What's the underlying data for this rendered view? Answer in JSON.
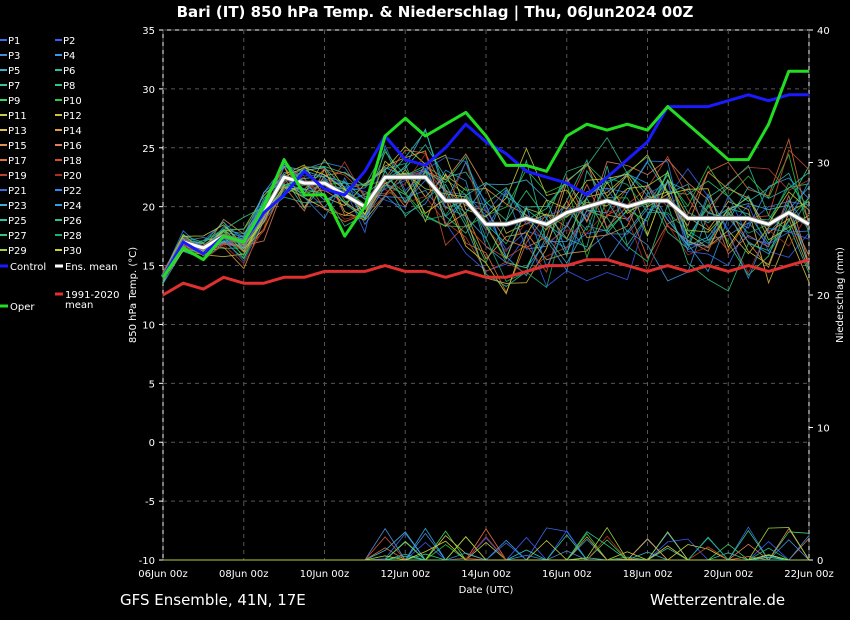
{
  "chart_data": {
    "type": "line",
    "title": "Bari  (IT)  850 hPa Temp. & Niederschlag | Thu, 06Jun2024 00Z",
    "ylabel": "850 hPa Temp. (°C)",
    "y2label": "Niederschlag (mm)",
    "xlabel": "Date (UTC)",
    "footer_left": "GFS Ensemble, 41N, 17E",
    "footer_right": "Wetterzentrale.de",
    "ylim": [
      -10,
      35
    ],
    "y2lim": [
      0,
      40
    ],
    "yticks": [
      "35",
      "30",
      "25",
      "20",
      "15",
      "10",
      "5",
      "0",
      "-5",
      "-10"
    ],
    "y2ticks": [
      "40",
      "30",
      "20",
      "10",
      "0"
    ],
    "xlim": [
      0,
      16
    ],
    "xtick_labels": [
      "06Jun 00z",
      "08Jun 00z",
      "10Jun 00z",
      "12Jun 00z",
      "14Jun 00z",
      "16Jun 00z",
      "18Jun 00z",
      "20Jun 00z",
      "22Jun 00z"
    ],
    "grid": true,
    "legend_position": "left-outside",
    "legend_entries": [
      {
        "name": "P1",
        "color": "#3a6cf0"
      },
      {
        "name": "P2",
        "color": "#3a5cf8"
      },
      {
        "name": "P3",
        "color": "#4a8ad8"
      },
      {
        "name": "P4",
        "color": "#3a9ae8"
      },
      {
        "name": "P5",
        "color": "#3ab0c8"
      },
      {
        "name": "P6",
        "color": "#2ac0a8"
      },
      {
        "name": "P7",
        "color": "#30c8a0"
      },
      {
        "name": "P8",
        "color": "#30c880"
      },
      {
        "name": "P9",
        "color": "#40d060"
      },
      {
        "name": "P10",
        "color": "#30c840"
      },
      {
        "name": "P11",
        "color": "#c8d040"
      },
      {
        "name": "P12",
        "color": "#d0c040"
      },
      {
        "name": "P13",
        "color": "#e0c040"
      },
      {
        "name": "P14",
        "color": "#e0a040"
      },
      {
        "name": "P15",
        "color": "#e09050"
      },
      {
        "name": "P16",
        "color": "#e08060"
      },
      {
        "name": "P17",
        "color": "#e07040"
      },
      {
        "name": "P18",
        "color": "#d05030"
      },
      {
        "name": "P19",
        "color": "#c04030"
      },
      {
        "name": "P20",
        "color": "#b03020"
      },
      {
        "name": "P21",
        "color": "#3a6ce0"
      },
      {
        "name": "P22",
        "color": "#2a8cf0"
      },
      {
        "name": "P23",
        "color": "#40b0d0"
      },
      {
        "name": "P24",
        "color": "#30a0e0"
      },
      {
        "name": "P25",
        "color": "#30c0b0"
      },
      {
        "name": "P26",
        "color": "#30c090"
      },
      {
        "name": "P27",
        "color": "#30c880"
      },
      {
        "name": "P28",
        "color": "#20b070"
      },
      {
        "name": "P29",
        "color": "#a0d040"
      },
      {
        "name": "P30",
        "color": "#d0d030"
      },
      {
        "name": "Control",
        "color": "#1a1aff"
      },
      {
        "name": "Ens. mean",
        "color": "#ffffff"
      },
      {
        "name": "1991-2020 mean",
        "color": "#e03030"
      },
      {
        "name": "Oper",
        "color": "#22dd22"
      }
    ],
    "series": [
      {
        "name": "Oper",
        "color": "#22dd22",
        "x": [
          0,
          0.5,
          1,
          1.5,
          2,
          2.5,
          3,
          3.5,
          4,
          4.5,
          5,
          5.5,
          6,
          6.5,
          7,
          7.5,
          8,
          8.5,
          9,
          9.5,
          10,
          10.5,
          11,
          11.5,
          12,
          12.5,
          13,
          13.5,
          14,
          14.5,
          15,
          15.5,
          16
        ],
        "values": [
          14,
          16.5,
          15.5,
          17.5,
          17,
          20,
          24,
          21,
          21,
          17.5,
          20,
          26,
          27.5,
          26,
          27,
          28,
          26,
          23.5,
          23.5,
          23,
          26,
          27,
          26.5,
          27,
          26.5,
          28.5,
          27,
          25.5,
          24,
          24,
          27,
          31.5,
          31.5
        ]
      },
      {
        "name": "Control",
        "color": "#1a1aff",
        "x": [
          0,
          0.5,
          1,
          1.5,
          2,
          2.5,
          3,
          3.5,
          4,
          4.5,
          5,
          5.5,
          6,
          6.5,
          7,
          7.5,
          8,
          8.5,
          9,
          9.5,
          10,
          10.5,
          11,
          11.5,
          12,
          12.5,
          13,
          13.5,
          14,
          14.5,
          15,
          15.5,
          16
        ],
        "values": [
          14,
          17,
          16,
          17.5,
          17,
          19.5,
          21,
          23,
          21.5,
          21,
          23,
          26,
          24,
          23.5,
          25,
          27,
          25.5,
          24.5,
          23,
          22.5,
          22,
          21,
          22.5,
          24,
          25.5,
          28.5,
          28.5,
          28.5,
          29,
          29.5,
          29,
          29.5,
          29.5
        ]
      },
      {
        "name": "Ens. mean",
        "color": "#ffffff",
        "x": [
          0,
          0.5,
          1,
          1.5,
          2,
          2.5,
          3,
          3.5,
          4,
          4.5,
          5,
          5.5,
          6,
          6.5,
          7,
          7.5,
          8,
          8.5,
          9,
          9.5,
          10,
          10.5,
          11,
          11.5,
          12,
          12.5,
          13,
          13.5,
          14,
          14.5,
          15,
          15.5,
          16
        ],
        "values": [
          14,
          17,
          16.5,
          17.5,
          17,
          19.5,
          22.5,
          22,
          22,
          21,
          20,
          22.5,
          22.5,
          22.5,
          20.5,
          20.5,
          18.5,
          18.5,
          19,
          18.5,
          19.5,
          20,
          20.5,
          20,
          20.5,
          20.5,
          19,
          19,
          19,
          19,
          18.5,
          19.5,
          18.5
        ]
      },
      {
        "name": "1991-2020 mean",
        "color": "#e03030",
        "x": [
          0,
          0.5,
          1,
          1.5,
          2,
          2.5,
          3,
          3.5,
          4,
          4.5,
          5,
          5.5,
          6,
          6.5,
          7,
          7.5,
          8,
          8.5,
          9,
          9.5,
          10,
          10.5,
          11,
          11.5,
          12,
          12.5,
          13,
          13.5,
          14,
          14.5,
          15,
          15.5,
          16
        ],
        "values": [
          12.5,
          13.5,
          13,
          14,
          13.5,
          13.5,
          14,
          14,
          14.5,
          14.5,
          14.5,
          15,
          14.5,
          14.5,
          14,
          14.5,
          14,
          14,
          14.5,
          15,
          15,
          15.5,
          15.5,
          15,
          14.5,
          15,
          14.5,
          15,
          14.5,
          15,
          14.5,
          15,
          15.5
        ]
      }
    ]
  }
}
